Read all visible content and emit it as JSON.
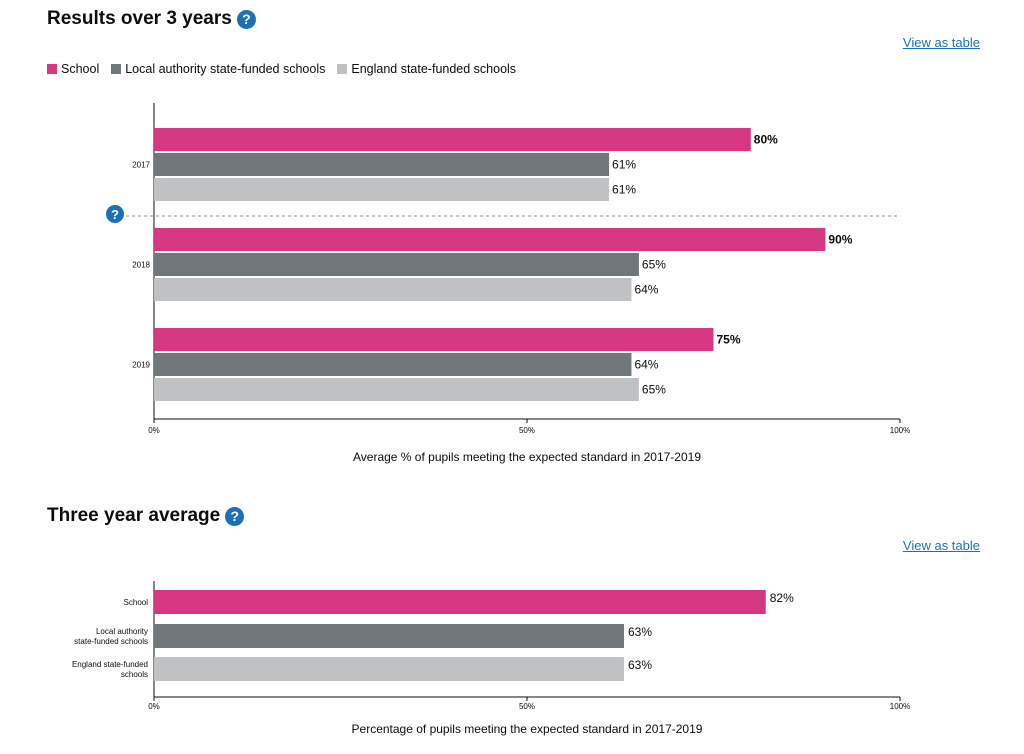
{
  "colors": {
    "school": "#d53880",
    "local": "#6f777b",
    "england": "#bfc1c3",
    "link": "#1d70b8"
  },
  "section1": {
    "heading": "Results over 3 years",
    "help_icon": "?",
    "view_link": "View as table"
  },
  "section2": {
    "heading": "Three year average",
    "help_icon": "?",
    "view_link": "View as table"
  },
  "legend": [
    {
      "label": "School",
      "color_key": "school"
    },
    {
      "label": "Local authority state-funded schools",
      "color_key": "local"
    },
    {
      "label": "England state-funded schools",
      "color_key": "england"
    }
  ],
  "chart_data": [
    {
      "type": "bar",
      "orientation": "horizontal",
      "categories": [
        "2017",
        "2018",
        "2019"
      ],
      "series": [
        {
          "name": "School",
          "color_key": "school",
          "values": [
            80,
            90,
            75
          ],
          "labels": [
            "80%",
            "90%",
            "75%"
          ],
          "bold_labels": true
        },
        {
          "name": "Local authority state-funded schools",
          "color_key": "local",
          "values": [
            61,
            65,
            64
          ],
          "labels": [
            "61%",
            "65%",
            "64%"
          ]
        },
        {
          "name": "England state-funded schools",
          "color_key": "england",
          "values": [
            61,
            64,
            65
          ],
          "labels": [
            "61%",
            "64%",
            "65%"
          ]
        }
      ],
      "xlim": [
        0,
        100
      ],
      "xticks": [
        "0%",
        "50%",
        "100%"
      ],
      "xlabel": "Average % of pupils meeting the expected standard in 2017-2019",
      "divider_help_icon": "?",
      "legend_position": "top-left"
    },
    {
      "type": "bar",
      "orientation": "horizontal",
      "categories": [
        [
          "School"
        ],
        [
          "Local authority",
          "state-funded schools"
        ],
        [
          "England state-funded",
          "schools"
        ]
      ],
      "series": [
        {
          "name": "Three year average",
          "values": [
            82,
            63,
            63
          ],
          "labels": [
            "82%",
            "63%",
            "63%"
          ],
          "color_keys": [
            "school",
            "local",
            "england"
          ]
        }
      ],
      "xlim": [
        0,
        100
      ],
      "xticks": [
        "0%",
        "50%",
        "100%"
      ],
      "xlabel": "Percentage of pupils meeting the expected standard in 2017-2019"
    }
  ]
}
